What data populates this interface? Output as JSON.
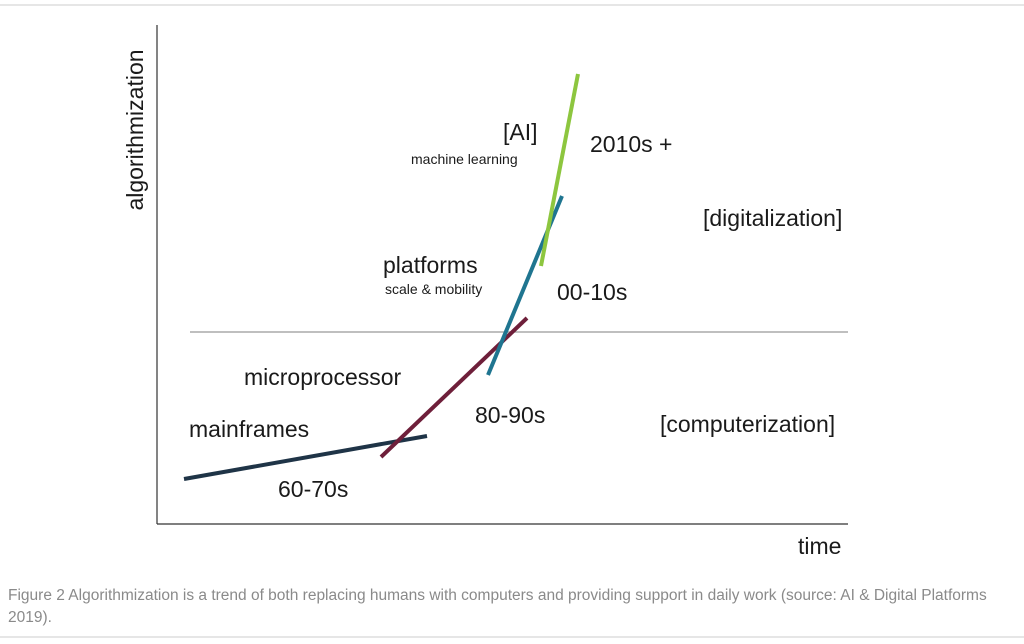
{
  "figure": {
    "y_axis_label": "algorithmization",
    "x_axis_label": "time",
    "regions": {
      "upper": "[digitalization]",
      "lower": "[computerization]"
    },
    "eras": [
      {
        "name": "mainframes",
        "period": "60-70s",
        "color": "#1f3447"
      },
      {
        "name": "microprocessor",
        "period": "80-90s",
        "color": "#6e1f3a"
      },
      {
        "name": "platforms",
        "subtitle": "scale & mobility",
        "period": "00-10s",
        "color": "#1f7590"
      },
      {
        "name": "[AI]",
        "subtitle": "machine learning",
        "period": "2010s +",
        "color": "#8dc63f"
      }
    ]
  },
  "caption": "Figure 2 Algorithmization is a trend of both replacing humans with computers and providing support in daily work (source: AI & Digital Platforms 2019)."
}
